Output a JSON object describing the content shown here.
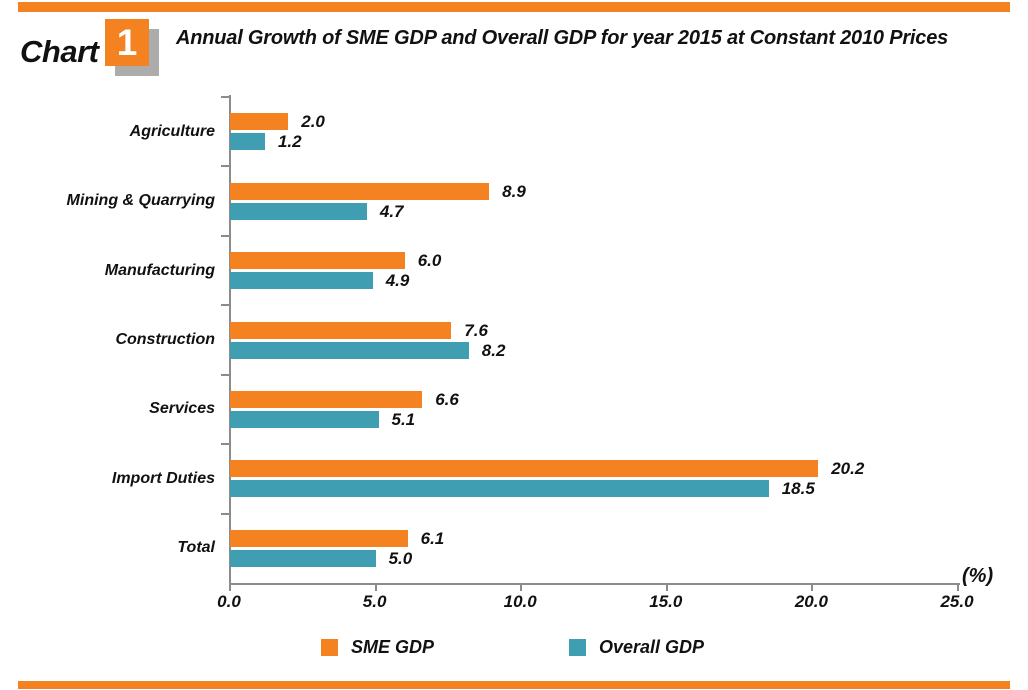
{
  "page": {
    "background": "#ffffff",
    "accent_orange": "#F58220",
    "accent_teal": "#3F9EB2",
    "axis_color": "#8C8C8C",
    "shadow_gray": "#ACACAC"
  },
  "header": {
    "chart_label": "Chart",
    "chart_number": "1",
    "title": "Annual Growth of SME GDP and Overall GDP for year 2015 at Constant 2010 Prices"
  },
  "chart_data": {
    "type": "bar",
    "orientation": "horizontal",
    "title": "Annual Growth of SME GDP and Overall GDP for year 2015 at Constant 2010 Prices",
    "categories": [
      "Agriculture",
      "Mining & Quarrying",
      "Manufacturing",
      "Construction",
      "Services",
      "Import Duties",
      "Total"
    ],
    "series": [
      {
        "name": "SME GDP",
        "color": "#F58220",
        "values": [
          2.0,
          8.9,
          6.0,
          7.6,
          6.6,
          20.2,
          6.1
        ]
      },
      {
        "name": "Overall GDP",
        "color": "#3F9EB2",
        "values": [
          1.2,
          4.7,
          4.9,
          8.2,
          5.1,
          18.5,
          5.0
        ]
      }
    ],
    "xlim": [
      0,
      25
    ],
    "x_ticks": [
      "0.0",
      "5.0",
      "10.0",
      "15.0",
      "20.0",
      "25.0"
    ],
    "x_unit_label": "(%)",
    "value_labels": true,
    "grid": false,
    "legend_position": "bottom"
  }
}
